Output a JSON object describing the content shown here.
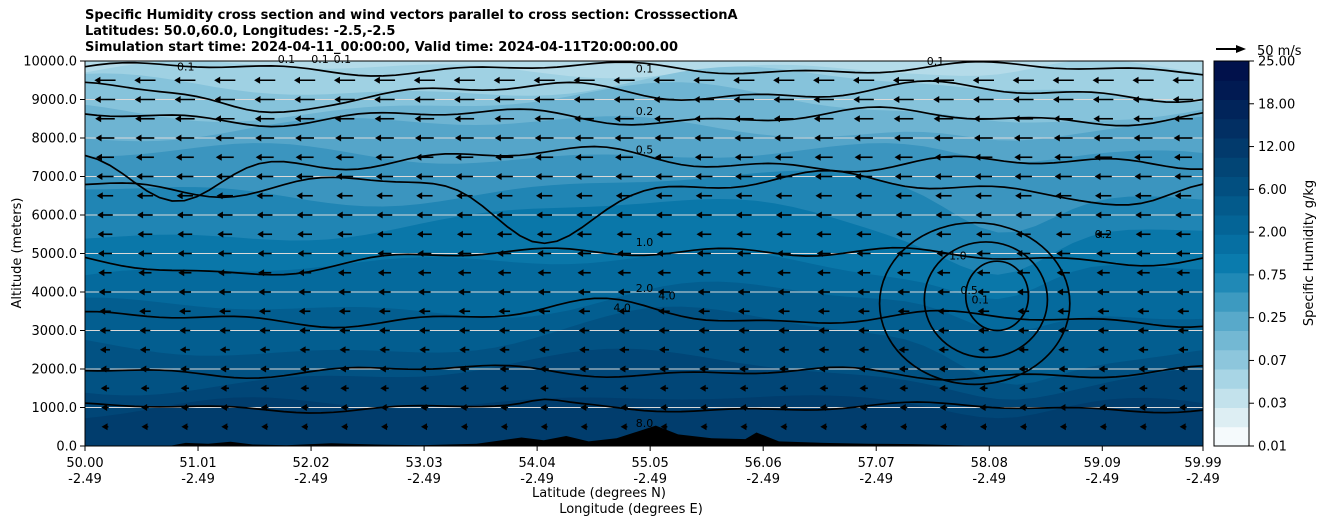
{
  "chart_data": {
    "type": "contourf",
    "title": [
      "Specific Humidity cross section and wind vectors parallel to cross section: CrosssectionA",
      "Latitudes: 50.0,60.0, Longitudes: -2.5,-2.5",
      "Simulation start time: 2024-04-11_00:00:00, Valid time: 2024-04-11T20:00:00.00"
    ],
    "ylabel": "Altitude (meters)",
    "xlabel_lat": "Latitude (degrees N)",
    "xlabel_lon": "Longitude (degrees E)",
    "ylim": [
      0,
      10000
    ],
    "yticks": [
      "0.0",
      "1000.0",
      "2000.0",
      "3000.0",
      "4000.0",
      "5000.0",
      "6000.0",
      "7000.0",
      "8000.0",
      "9000.0",
      "10000.0"
    ],
    "xlim": [
      50.0,
      59.99
    ],
    "xticks": [
      {
        "lat": "50.00",
        "lon": "-2.49",
        "v": 50.0
      },
      {
        "lat": "51.01",
        "lon": "-2.49",
        "v": 51.01
      },
      {
        "lat": "52.02",
        "lon": "-2.49",
        "v": 52.02
      },
      {
        "lat": "53.03",
        "lon": "-2.49",
        "v": 53.03
      },
      {
        "lat": "54.04",
        "lon": "-2.49",
        "v": 54.04
      },
      {
        "lat": "55.05",
        "lon": "-2.49",
        "v": 55.05
      },
      {
        "lat": "56.06",
        "lon": "-2.49",
        "v": 56.06
      },
      {
        "lat": "57.07",
        "lon": "-2.49",
        "v": 57.07
      },
      {
        "lat": "58.08",
        "lon": "-2.49",
        "v": 58.08
      },
      {
        "lat": "59.09",
        "lon": "-2.49",
        "v": 59.09
      },
      {
        "lat": "59.99",
        "lon": "-2.49",
        "v": 59.99
      }
    ],
    "colorbar": {
      "label": "Specific Humidity g/kg",
      "ticks": [
        "0.01",
        "0.03",
        "0.07",
        "0.25",
        "0.75",
        "2.00",
        "6.00",
        "12.00",
        "18.00",
        "25.00"
      ],
      "colors": [
        "#f5fafc",
        "#ddeef3",
        "#c3e2ec",
        "#a8d5e5",
        "#8dc6dc",
        "#73b8d3",
        "#58a9ca",
        "#3d9ac0",
        "#2089b6",
        "#0a7bad",
        "#066fa2",
        "#046496",
        "#035a8b",
        "#024f80",
        "#024575",
        "#023a6c",
        "#022f63",
        "#01245a",
        "#011a52",
        "#01114b"
      ]
    },
    "quiver_key": {
      "label": "50 m/s",
      "speed_ms": 50
    },
    "wind_field": {
      "direction": "negative-x",
      "speed_ms_top": 12,
      "speed_ms_surface": 3
    },
    "contour_levels_labeled": [
      "0.1",
      "0.1",
      "0.1",
      "0.1",
      "0.1",
      "0.2",
      "0.5",
      "1.0",
      "2.0",
      "4.0",
      "4.0",
      "8.0",
      "0.5",
      "0.1",
      "1.0",
      "0.2",
      "0.1"
    ],
    "terrain": "Black filled orography along the surface between 50.8 and 58.0 degrees N, peaking near 55.1 degrees N (about 500 m)."
  }
}
